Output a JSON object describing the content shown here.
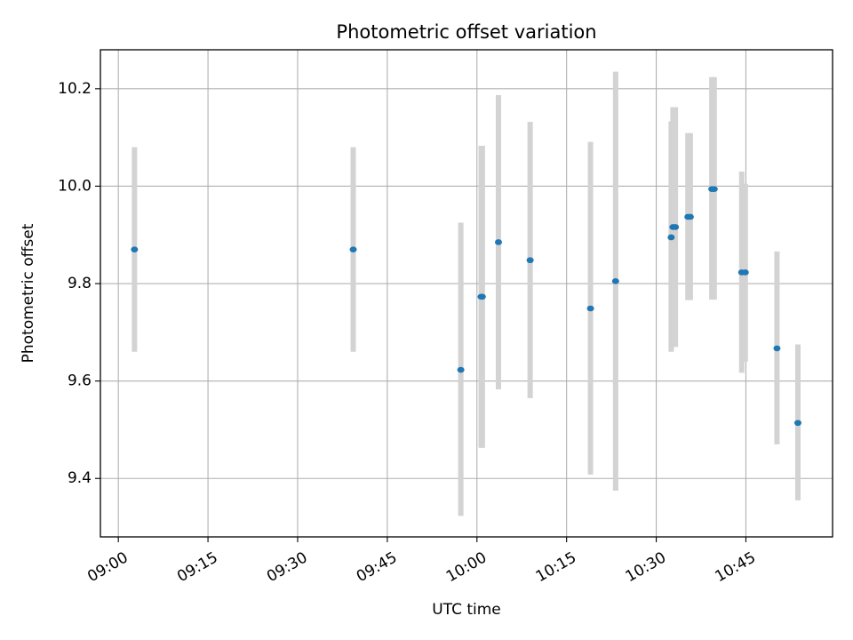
{
  "chart_data": {
    "type": "scatter",
    "title": "Photometric offset variation",
    "xlabel": "UTC time",
    "ylabel": "Photometric offset",
    "x_unit": "minutes after 09:00 UTC",
    "xlim": [
      -3,
      119.5
    ],
    "ylim": [
      9.28,
      10.28
    ],
    "grid": true,
    "x_ticks": [
      {
        "value": 0,
        "label": "09:00"
      },
      {
        "value": 15,
        "label": "09:15"
      },
      {
        "value": 30,
        "label": "09:30"
      },
      {
        "value": 45,
        "label": "09:45"
      },
      {
        "value": 60,
        "label": "10:00"
      },
      {
        "value": 75,
        "label": "10:15"
      },
      {
        "value": 90,
        "label": "10:30"
      },
      {
        "value": 105,
        "label": "10:45"
      }
    ],
    "y_ticks": [
      {
        "value": 9.4,
        "label": "9.4"
      },
      {
        "value": 9.6,
        "label": "9.6"
      },
      {
        "value": 9.8,
        "label": "9.8"
      },
      {
        "value": 10.0,
        "label": "10.0"
      },
      {
        "value": 10.2,
        "label": "10.2"
      }
    ],
    "series": [
      {
        "name": "Photometric offset",
        "color": "#1f77b4",
        "error_color": "#d3d3d3",
        "points": [
          {
            "x": 2.7,
            "y": 9.87,
            "err_low": 9.66,
            "err_high": 10.08
          },
          {
            "x": 39.3,
            "y": 9.87,
            "err_low": 9.66,
            "err_high": 10.08
          },
          {
            "x": 57.3,
            "y": 9.623,
            "err_low": 9.323,
            "err_high": 9.925
          },
          {
            "x": 60.7,
            "y": 9.773,
            "err_low": 9.463,
            "err_high": 10.083
          },
          {
            "x": 60.9,
            "y": 9.773,
            "err_low": 9.463,
            "err_high": 10.083
          },
          {
            "x": 63.6,
            "y": 9.885,
            "err_low": 9.583,
            "err_high": 10.187
          },
          {
            "x": 68.9,
            "y": 9.848,
            "err_low": 9.565,
            "err_high": 10.132
          },
          {
            "x": 79.0,
            "y": 9.749,
            "err_low": 9.408,
            "err_high": 10.091
          },
          {
            "x": 83.2,
            "y": 9.805,
            "err_low": 9.375,
            "err_high": 10.235
          },
          {
            "x": 92.5,
            "y": 9.895,
            "err_low": 9.66,
            "err_high": 10.133
          },
          {
            "x": 92.8,
            "y": 9.916,
            "err_low": 9.67,
            "err_high": 10.162
          },
          {
            "x": 93.2,
            "y": 9.916,
            "err_low": 9.67,
            "err_high": 10.162
          },
          {
            "x": 95.3,
            "y": 9.937,
            "err_low": 9.766,
            "err_high": 10.109
          },
          {
            "x": 95.7,
            "y": 9.937,
            "err_low": 9.766,
            "err_high": 10.109
          },
          {
            "x": 99.3,
            "y": 9.994,
            "err_low": 9.767,
            "err_high": 10.224
          },
          {
            "x": 99.7,
            "y": 9.994,
            "err_low": 9.767,
            "err_high": 10.224
          },
          {
            "x": 104.3,
            "y": 9.823,
            "err_low": 9.617,
            "err_high": 10.03
          },
          {
            "x": 104.9,
            "y": 9.823,
            "err_low": 9.64,
            "err_high": 10.005
          },
          {
            "x": 110.2,
            "y": 9.667,
            "err_low": 9.47,
            "err_high": 9.866
          },
          {
            "x": 113.7,
            "y": 9.514,
            "err_low": 9.355,
            "err_high": 9.675
          }
        ]
      }
    ]
  }
}
